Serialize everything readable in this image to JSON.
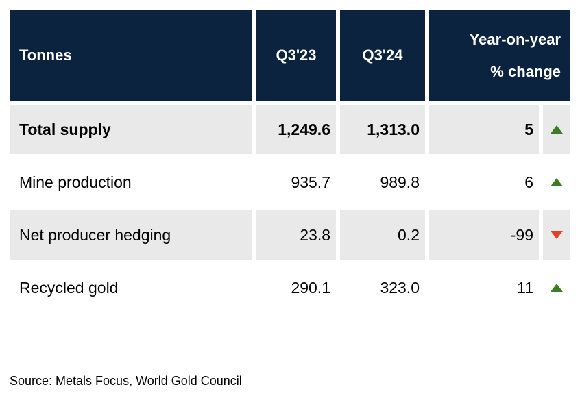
{
  "table": {
    "header": {
      "col_tonnes": "Tonnes",
      "col_q3_23": "Q3'23",
      "col_q3_24": "Q3'24",
      "col_change_line1": "Year-on-year",
      "col_change_line2": "% change"
    },
    "rows": [
      {
        "label": "Total supply",
        "q3_23": "1,249.6",
        "q3_24": "1,313.0",
        "pct_change": "5",
        "direction": "up",
        "emphasis": true
      },
      {
        "label": "Mine production",
        "q3_23": "935.7",
        "q3_24": "989.8",
        "pct_change": "6",
        "direction": "up",
        "emphasis": false
      },
      {
        "label": "Net producer hedging",
        "q3_23": "23.8",
        "q3_24": "0.2",
        "pct_change": "-99",
        "direction": "down",
        "emphasis": false
      },
      {
        "label": "Recycled gold",
        "q3_23": "290.1",
        "q3_24": "323.0",
        "pct_change": "11",
        "direction": "up",
        "emphasis": false
      }
    ]
  },
  "source": "Source: Metals Focus, World Gold Council",
  "colors": {
    "header_bg": "#0c2340",
    "row_alt_bg": "#e9e9e9",
    "up_arrow": "#3a7d22",
    "down_arrow": "#e44027"
  },
  "chart_data": {
    "type": "table",
    "columns": [
      "Tonnes",
      "Q3'23",
      "Q3'24",
      "Year-on-year % change"
    ],
    "rows": [
      [
        "Total supply",
        1249.6,
        1313.0,
        5
      ],
      [
        "Mine production",
        935.7,
        989.8,
        6
      ],
      [
        "Net producer hedging",
        23.8,
        0.2,
        -99
      ],
      [
        "Recycled gold",
        290.1,
        323.0,
        11
      ]
    ],
    "source": "Source: Metals Focus, World Gold Council"
  }
}
